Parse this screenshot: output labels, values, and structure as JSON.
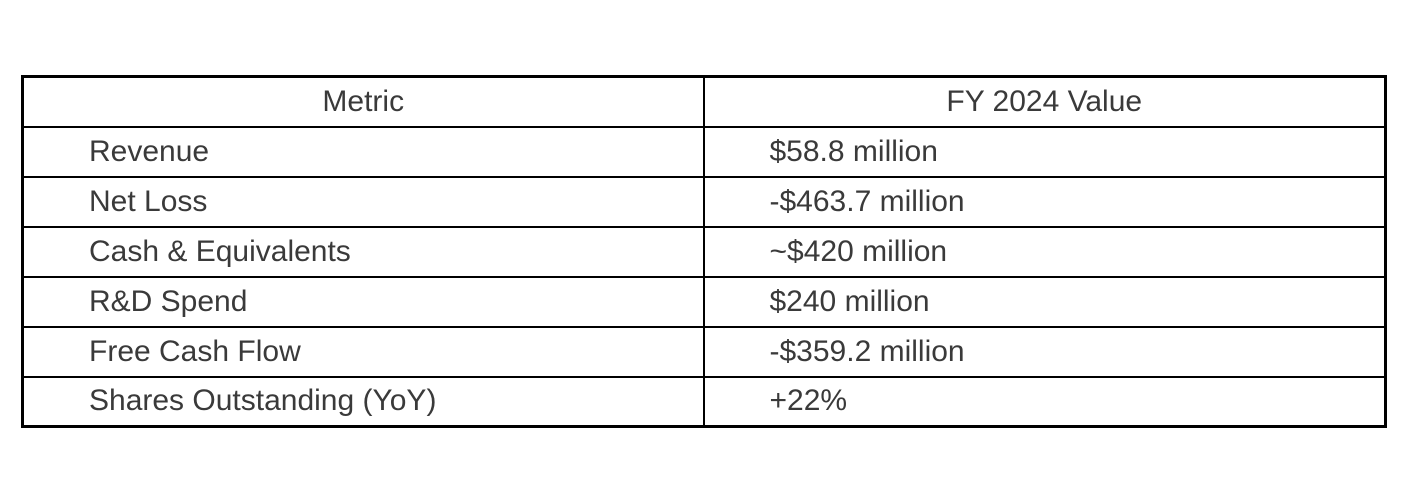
{
  "page": {
    "background": "#ffffff"
  },
  "colors": {
    "border": "#000000",
    "text": "#3a3a3a",
    "background": "#ffffff"
  },
  "table": {
    "headers": [
      "Metric",
      "FY 2024 Value"
    ],
    "rows": [
      {
        "metric": "Revenue",
        "value": "$58.8 million"
      },
      {
        "metric": "Net Loss",
        "value": "-$463.7 million"
      },
      {
        "metric": "Cash & Equivalents",
        "value": "~$420 million"
      },
      {
        "metric": "R&D Spend",
        "value": "$240 million"
      },
      {
        "metric": "Free Cash Flow",
        "value": "-$359.2 million"
      },
      {
        "metric": "Shares Outstanding (YoY)",
        "value": "+22%"
      }
    ]
  },
  "chart_data": {
    "type": "table",
    "title": "",
    "columns": [
      "Metric",
      "FY 2024 Value"
    ],
    "rows": [
      [
        "Revenue",
        "$58.8 million"
      ],
      [
        "Net Loss",
        "-$463.7 million"
      ],
      [
        "Cash & Equivalents",
        "~$420 million"
      ],
      [
        "R&D Spend",
        "$240 million"
      ],
      [
        "Free Cash Flow",
        "-$359.2 million"
      ],
      [
        "Shares Outstanding (YoY)",
        "+22%"
      ]
    ],
    "numeric_values": {
      "revenue_million_usd": 58.8,
      "net_loss_million_usd": -463.7,
      "cash_equivalents_million_usd_approx": 420,
      "rd_spend_million_usd": 240,
      "free_cash_flow_million_usd": -359.2,
      "shares_outstanding_yoy_change_pct": 22
    },
    "layout": {
      "header_align": "center",
      "cell_align": "left",
      "grid": "full-borders"
    }
  }
}
